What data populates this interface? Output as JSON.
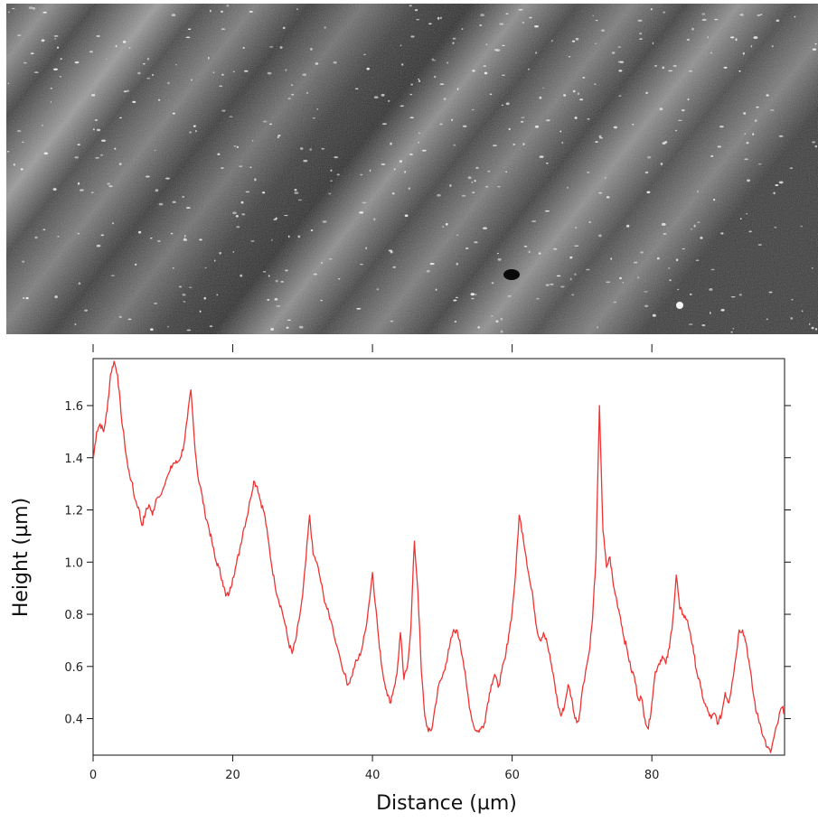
{
  "chart_data": {
    "type": "line",
    "title": "",
    "xlabel": "Distance (µm)",
    "ylabel": "Height (µm)",
    "xlim": [
      0,
      99
    ],
    "ylim": [
      0.26,
      1.78
    ],
    "xticks": [
      0,
      20,
      40,
      60,
      80
    ],
    "yticks": [
      0.4,
      0.6,
      0.8,
      1.0,
      1.2,
      1.4,
      1.6
    ],
    "xtick_labels": [
      "0",
      "20",
      "40",
      "60",
      "80"
    ],
    "ytick_labels": [
      "0.4",
      "0.6",
      "0.8",
      "1.0",
      "1.2",
      "1.4",
      "1.6"
    ],
    "grid": false,
    "line_color": "#ee3333",
    "series": [
      {
        "x": [
          0,
          0.5,
          1,
          1.5,
          2,
          2.5,
          3,
          3.5,
          4,
          4.5,
          5,
          5.5,
          6,
          6.5,
          7,
          7.5,
          8,
          8.5,
          9,
          10,
          11,
          11.5,
          12,
          12.5,
          13,
          13.5,
          14,
          14.5,
          15,
          15.5,
          16,
          16.5,
          17,
          17.5,
          18,
          18.5,
          19,
          19.5,
          20,
          20.5,
          21,
          21.5,
          22,
          22.5,
          23,
          23.5,
          24,
          24.5,
          25,
          25.5,
          26,
          26.5,
          27,
          27.5,
          28,
          28.5,
          29,
          29.5,
          30,
          30.5,
          31,
          31.5,
          32,
          32.5,
          33,
          33.5,
          34,
          35,
          36,
          36.5,
          37,
          37.5,
          38,
          38.5,
          39,
          39.5,
          40,
          40.5,
          41,
          41.5,
          42,
          42.5,
          43,
          43.5,
          44,
          44.5,
          45,
          45.5,
          46,
          46.5,
          47,
          47.5,
          48,
          48.5,
          49,
          49.5,
          50,
          50.5,
          51,
          51.5,
          52,
          52.5,
          53,
          53.5,
          54,
          54.5,
          55,
          55.5,
          56,
          56.5,
          57,
          57.5,
          58,
          58.5,
          59,
          59.5,
          60,
          60.5,
          61,
          61.5,
          62,
          62.5,
          63,
          63.5,
          64,
          64.5,
          65,
          65.5,
          66,
          66.5,
          67,
          67.5,
          68,
          68.5,
          69,
          69.5,
          70,
          70.5,
          71,
          71.5,
          72,
          72.5,
          73,
          73.5,
          74,
          74.5,
          75,
          75.5,
          76,
          76.5,
          77,
          77.5,
          78,
          78.5,
          79,
          79.5,
          80,
          80.5,
          81,
          81.5,
          82,
          82.5,
          83,
          83.5,
          84,
          84.5,
          85,
          85.5,
          86,
          86.5,
          87,
          87.5,
          88,
          88.5,
          89,
          89.5,
          90,
          90.5,
          91,
          91.5,
          92,
          92.5,
          93,
          93.5,
          94,
          94.5,
          95,
          95.5,
          96,
          96.5,
          97,
          97.5,
          98,
          98.5,
          99
        ],
        "y": [
          1.39,
          1.5,
          1.53,
          1.5,
          1.58,
          1.72,
          1.77,
          1.72,
          1.57,
          1.46,
          1.36,
          1.31,
          1.24,
          1.21,
          1.14,
          1.19,
          1.22,
          1.18,
          1.24,
          1.28,
          1.35,
          1.38,
          1.38,
          1.4,
          1.45,
          1.55,
          1.66,
          1.47,
          1.33,
          1.27,
          1.19,
          1.14,
          1.08,
          1.01,
          0.98,
          0.93,
          0.87,
          0.88,
          0.94,
          0.99,
          1.05,
          1.12,
          1.17,
          1.24,
          1.31,
          1.29,
          1.23,
          1.19,
          1.1,
          1.0,
          0.92,
          0.86,
          0.82,
          0.76,
          0.69,
          0.65,
          0.7,
          0.78,
          0.87,
          1.02,
          1.18,
          1.03,
          1.0,
          0.94,
          0.87,
          0.82,
          0.78,
          0.67,
          0.57,
          0.53,
          0.56,
          0.61,
          0.63,
          0.67,
          0.74,
          0.84,
          0.96,
          0.82,
          0.67,
          0.57,
          0.51,
          0.46,
          0.51,
          0.57,
          0.73,
          0.55,
          0.6,
          0.75,
          1.08,
          0.89,
          0.58,
          0.41,
          0.35,
          0.36,
          0.45,
          0.53,
          0.56,
          0.61,
          0.67,
          0.73,
          0.74,
          0.7,
          0.62,
          0.52,
          0.43,
          0.37,
          0.35,
          0.36,
          0.38,
          0.46,
          0.53,
          0.57,
          0.52,
          0.58,
          0.63,
          0.72,
          0.81,
          0.96,
          1.18,
          1.11,
          1.02,
          0.93,
          0.86,
          0.75,
          0.7,
          0.73,
          0.69,
          0.62,
          0.55,
          0.46,
          0.41,
          0.45,
          0.53,
          0.48,
          0.4,
          0.39,
          0.5,
          0.58,
          0.65,
          0.78,
          1.02,
          1.6,
          1.12,
          0.98,
          1.02,
          0.91,
          0.85,
          0.79,
          0.71,
          0.66,
          0.59,
          0.56,
          0.48,
          0.48,
          0.4,
          0.36,
          0.46,
          0.58,
          0.61,
          0.64,
          0.61,
          0.67,
          0.78,
          0.95,
          0.82,
          0.8,
          0.78,
          0.73,
          0.65,
          0.57,
          0.52,
          0.46,
          0.43,
          0.4,
          0.42,
          0.38,
          0.42,
          0.5,
          0.46,
          0.54,
          0.63,
          0.74,
          0.74,
          0.69,
          0.6,
          0.5,
          0.42,
          0.38,
          0.33,
          0.29,
          0.27,
          0.33,
          0.38,
          0.44,
          0.43
        ]
      }
    ]
  }
}
